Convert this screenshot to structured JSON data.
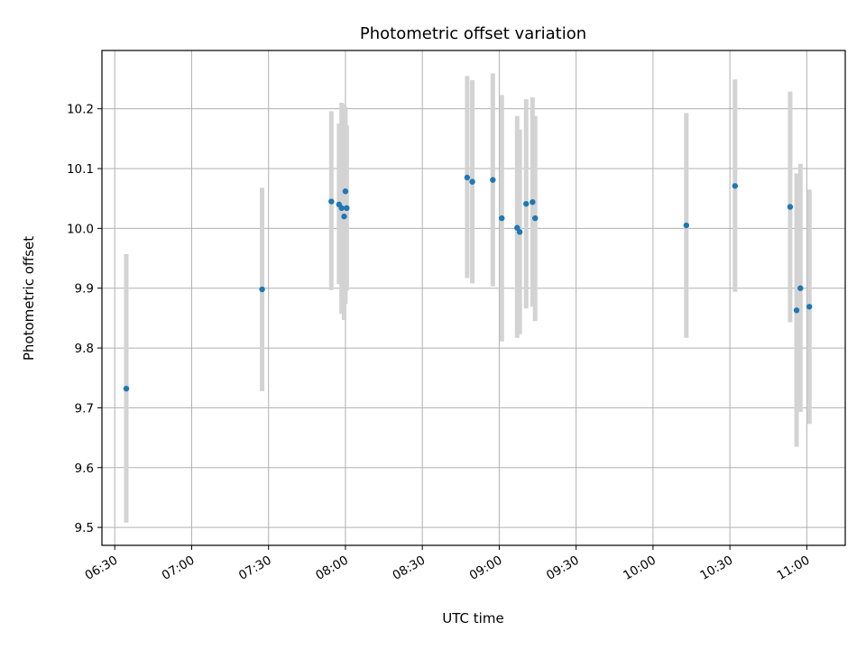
{
  "chart_data": {
    "type": "scatter",
    "title": "Photometric offset variation",
    "xlabel": "UTC time",
    "ylabel": "Photometric offset",
    "grid": true,
    "xlim": [
      "06:25",
      "11:15"
    ],
    "ylim": [
      9.47,
      10.2975
    ],
    "x_ticks": [
      "06:30",
      "07:00",
      "07:30",
      "08:00",
      "08:30",
      "09:00",
      "09:30",
      "10:00",
      "10:30",
      "11:00"
    ],
    "y_ticks": [
      "9.5",
      "9.6",
      "9.7",
      "9.8",
      "9.9",
      "10.0",
      "10.1",
      "10.2"
    ],
    "point_color": "#1f77b4",
    "errorbar_color": "#d3d3d3",
    "points": [
      {
        "x": "06:34.5",
        "y": 9.732,
        "lo": 9.508,
        "hi": 9.957
      },
      {
        "x": "07:27.5",
        "y": 9.898,
        "lo": 9.728,
        "hi": 10.068
      },
      {
        "x": "07:54.5",
        "y": 10.045,
        "lo": 9.897,
        "hi": 10.196
      },
      {
        "x": "07:57.5",
        "y": 10.04,
        "lo": 9.907,
        "hi": 10.175
      },
      {
        "x": "07:58.5",
        "y": 10.034,
        "lo": 9.857,
        "hi": 10.21
      },
      {
        "x": "07:59.5",
        "y": 10.02,
        "lo": 9.847,
        "hi": 10.208
      },
      {
        "x": "08:00.0",
        "y": 10.062,
        "lo": 9.874,
        "hi": 10.203
      },
      {
        "x": "08:00.5",
        "y": 10.034,
        "lo": 9.896,
        "hi": 10.172
      },
      {
        "x": "08:47.5",
        "y": 10.085,
        "lo": 9.917,
        "hi": 10.255
      },
      {
        "x": "08:49.5",
        "y": 10.078,
        "lo": 9.908,
        "hi": 10.248
      },
      {
        "x": "08:57.5",
        "y": 10.081,
        "lo": 9.903,
        "hi": 10.259
      },
      {
        "x": "09:01.0",
        "y": 10.017,
        "lo": 9.811,
        "hi": 10.223
      },
      {
        "x": "09:07.0",
        "y": 10.001,
        "lo": 9.817,
        "hi": 10.188
      },
      {
        "x": "09:08.0",
        "y": 9.994,
        "lo": 9.823,
        "hi": 10.165
      },
      {
        "x": "09:10.5",
        "y": 10.041,
        "lo": 9.866,
        "hi": 10.216
      },
      {
        "x": "09:13.0",
        "y": 10.044,
        "lo": 9.869,
        "hi": 10.219
      },
      {
        "x": "09:14.0",
        "y": 10.017,
        "lo": 9.845,
        "hi": 10.188
      },
      {
        "x": "10:13.0",
        "y": 10.005,
        "lo": 9.817,
        "hi": 10.193
      },
      {
        "x": "10:32.0",
        "y": 10.071,
        "lo": 9.894,
        "hi": 10.249
      },
      {
        "x": "10:53.5",
        "y": 10.036,
        "lo": 9.843,
        "hi": 10.229
      },
      {
        "x": "10:56.0",
        "y": 9.863,
        "lo": 9.635,
        "hi": 10.092
      },
      {
        "x": "10:57.5",
        "y": 9.9,
        "lo": 9.693,
        "hi": 10.108
      },
      {
        "x": "11:01.0",
        "y": 9.869,
        "lo": 9.673,
        "hi": 10.065
      }
    ]
  }
}
